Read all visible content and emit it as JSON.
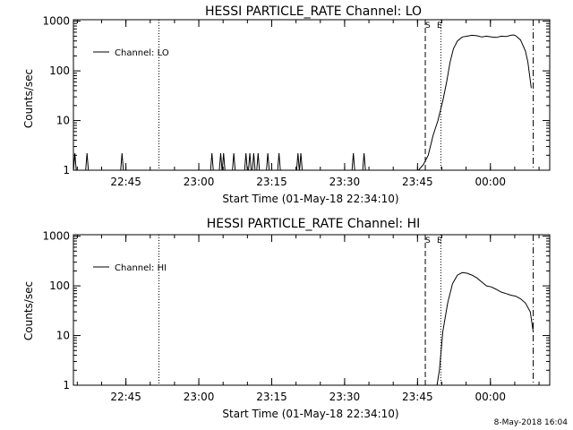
{
  "footer": {
    "timestamp": "8-May-2018 16:04"
  },
  "chart_data": [
    {
      "type": "line",
      "title": "HESSI PARTICLE_RATE Channel: LO",
      "xlabel": "Start Time (01-May-18 22:34:10)",
      "ylabel": "Counts/sec",
      "yscale": "log",
      "ylim": [
        1,
        1000
      ],
      "ytick_labels": [
        "1",
        "10",
        "100",
        "1000"
      ],
      "ytick_values": [
        1,
        10,
        100,
        1000
      ],
      "xlim_minutes": [
        0,
        98
      ],
      "xtick_labels": [
        "22:45",
        "23:00",
        "23:15",
        "23:30",
        "23:45",
        "00:00"
      ],
      "xtick_minutes": [
        10.8,
        25.8,
        40.8,
        55.8,
        70.8,
        85.8
      ],
      "legend": {
        "position": "top-left",
        "entries": [
          "Channel: LO"
        ]
      },
      "markers": {
        "start_label": "S",
        "end_label": "E",
        "start_minute": 72.4,
        "end_minute": 75.6
      },
      "vlines": [
        {
          "minute": 17.6,
          "style": "dotted"
        },
        {
          "minute": 72.4,
          "style": "dashed"
        },
        {
          "minute": 75.6,
          "style": "dotted"
        },
        {
          "minute": 94.6,
          "style": "dashdot"
        }
      ],
      "spike_minutes": [
        0.3,
        2.8,
        10.0,
        28.5,
        30.3,
        30.9,
        33.0,
        35.5,
        36.3,
        37.1,
        38.0,
        40.0,
        42.3,
        46.2,
        46.8,
        57.6,
        59.8
      ],
      "series": [
        {
          "x": [
            71.0,
            72.0,
            73.0,
            74.0,
            75.0,
            76.0,
            76.8,
            77.5,
            78.2,
            79.0,
            80.0,
            81.0,
            82.0,
            83.0,
            84.0,
            85.0,
            86.0,
            87.0,
            88.0,
            89.0,
            90.0,
            90.6,
            91.0,
            92.0,
            93.0,
            93.5,
            94.2
          ],
          "y": [
            1,
            1.3,
            2,
            5,
            10,
            25,
            60,
            150,
            280,
            400,
            480,
            500,
            520,
            510,
            480,
            500,
            480,
            470,
            500,
            490,
            520,
            530,
            510,
            420,
            250,
            150,
            45
          ]
        }
      ]
    },
    {
      "type": "line",
      "title": "HESSI PARTICLE_RATE Channel: HI",
      "xlabel": "Start Time (01-May-18 22:34:10)",
      "ylabel": "Counts/sec",
      "yscale": "log",
      "ylim": [
        1,
        1000
      ],
      "ytick_labels": [
        "1",
        "10",
        "100",
        "1000"
      ],
      "ytick_values": [
        1,
        10,
        100,
        1000
      ],
      "xlim_minutes": [
        0,
        98
      ],
      "xtick_labels": [
        "22:45",
        "23:00",
        "23:15",
        "23:30",
        "23:45",
        "00:00"
      ],
      "xtick_minutes": [
        10.8,
        25.8,
        40.8,
        55.8,
        70.8,
        85.8
      ],
      "legend": {
        "position": "top-left",
        "entries": [
          "Channel: HI"
        ]
      },
      "markers": {
        "start_label": "S",
        "end_label": "E",
        "start_minute": 72.4,
        "end_minute": 75.6
      },
      "vlines": [
        {
          "minute": 17.6,
          "style": "dotted"
        },
        {
          "minute": 72.4,
          "style": "dashed"
        },
        {
          "minute": 75.6,
          "style": "dotted"
        },
        {
          "minute": 94.6,
          "style": "dashdot"
        }
      ],
      "spike_minutes": [],
      "series": [
        {
          "x": [
            74.8,
            75.3,
            76.0,
            77.0,
            78.0,
            79.0,
            80.0,
            81.0,
            82.0,
            83.0,
            84.0,
            85.0,
            86.0,
            87.0,
            88.0,
            89.0,
            90.0,
            91.0,
            92.0,
            93.0,
            94.0,
            94.6
          ],
          "y": [
            1,
            2,
            12,
            45,
            110,
            165,
            185,
            180,
            165,
            145,
            120,
            100,
            95,
            85,
            75,
            70,
            65,
            62,
            55,
            45,
            30,
            12
          ]
        }
      ]
    }
  ]
}
